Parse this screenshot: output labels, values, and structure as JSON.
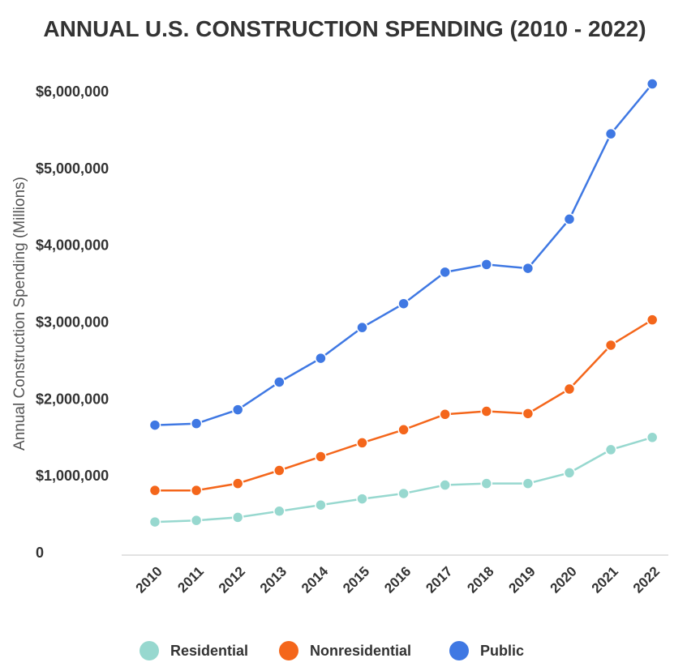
{
  "chart_data": {
    "type": "line",
    "title": "ANNUAL U.S. CONSTRUCTION SPENDING (2010 - 2022)",
    "xlabel": "",
    "ylabel": "Annual Construction Spending (Millions)",
    "categories": [
      "2010",
      "2011",
      "2012",
      "2013",
      "2014",
      "2015",
      "2016",
      "2017",
      "2018",
      "2019",
      "2020",
      "2021",
      "2022"
    ],
    "ylim": [
      0,
      6000000
    ],
    "yticks": [
      0,
      1000000,
      2000000,
      3000000,
      4000000,
      5000000,
      6000000
    ],
    "ytick_labels": [
      "0",
      "$1,000,000",
      "$2,000,000",
      "$3,000,000",
      "$4,000,000",
      "$5,000,000",
      "$6,000,000"
    ],
    "grid": false,
    "legend_position": "bottom",
    "series": [
      {
        "name": "Residential",
        "color": "#97d8cf",
        "values": [
          400000,
          420000,
          460000,
          540000,
          620000,
          700000,
          770000,
          880000,
          900000,
          900000,
          1040000,
          1340000,
          1500000
        ]
      },
      {
        "name": "Nonresidential",
        "color": "#f4661b",
        "values": [
          810000,
          810000,
          900000,
          1070000,
          1250000,
          1430000,
          1600000,
          1800000,
          1840000,
          1810000,
          2130000,
          2700000,
          3030000
        ]
      },
      {
        "name": "Public",
        "color": "#3f78e3",
        "values": [
          1660000,
          1680000,
          1860000,
          2220000,
          2530000,
          2930000,
          3240000,
          3650000,
          3750000,
          3700000,
          4340000,
          5450000,
          6100000
        ]
      }
    ]
  }
}
